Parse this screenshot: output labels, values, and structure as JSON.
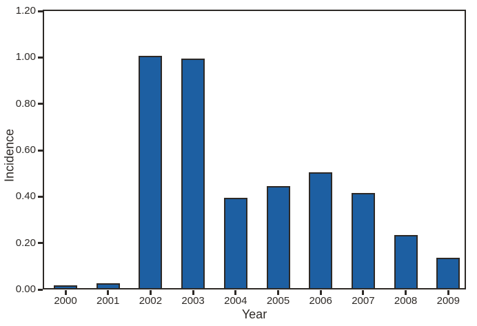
{
  "chart_data": {
    "type": "bar",
    "title": "",
    "xlabel": "Year",
    "ylabel": "Incidence",
    "categories": [
      "2000",
      "2001",
      "2002",
      "2003",
      "2004",
      "2005",
      "2006",
      "2007",
      "2008",
      "2009"
    ],
    "values": [
      0.01,
      0.02,
      1.0,
      0.99,
      0.39,
      0.44,
      0.5,
      0.41,
      0.23,
      0.13
    ],
    "ylim": [
      0,
      1.2
    ],
    "ytick_labels": [
      "0.00",
      "0.20",
      "0.40",
      "0.60",
      "0.80",
      "1.00",
      "1.20"
    ],
    "ytick_values": [
      0.0,
      0.2,
      0.4,
      0.6,
      0.8,
      1.0,
      1.2
    ],
    "grid": false,
    "legend": "none",
    "bar_fill_color": "#1d5fa2",
    "bar_edge_color": "#2d2926",
    "axis_color": "#2d2926",
    "background_color": "#ffffff"
  }
}
